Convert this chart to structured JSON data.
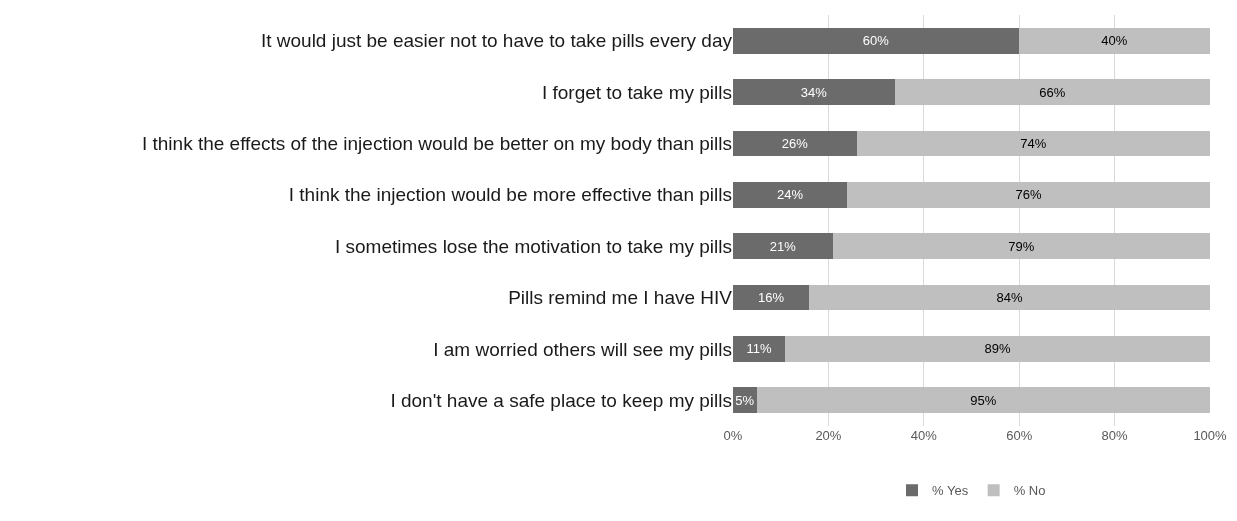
{
  "chart_data": {
    "type": "bar",
    "orientation": "horizontal",
    "stacked": true,
    "categories": [
      "It would just be easier not to have to take pills every day",
      "I forget to take my pills",
      "I think the effects of the injection would be better on my body than pills",
      "I think the injection would be more effective than pills",
      "I sometimes lose the motivation to take my pills",
      "Pills remind me I have HIV",
      "I am worried others will see my pills",
      "I don't have a safe place to keep my pills"
    ],
    "series": [
      {
        "name": "% Yes",
        "color": "#6b6b6b",
        "values": [
          60,
          34,
          26,
          24,
          21,
          16,
          11,
          5
        ],
        "value_labels": [
          "60%",
          "34%",
          "26%",
          "24%",
          "21%",
          "16%",
          "11%",
          "5%"
        ]
      },
      {
        "name": "% No",
        "color": "#bfbfbf",
        "values": [
          40,
          66,
          74,
          76,
          79,
          84,
          89,
          95
        ],
        "value_labels": [
          "40%",
          "66%",
          "74%",
          "76%",
          "79%",
          "84%",
          "89%",
          "95%"
        ]
      }
    ],
    "xlim": [
      0,
      100
    ],
    "xticks": [
      {
        "value": 0,
        "label": "0%"
      },
      {
        "value": 20,
        "label": "20%"
      },
      {
        "value": 40,
        "label": "40%"
      },
      {
        "value": 60,
        "label": "60%"
      },
      {
        "value": 80,
        "label": "80%"
      },
      {
        "value": 100,
        "label": "100%"
      }
    ],
    "grid": "x",
    "legend": "bottom"
  }
}
